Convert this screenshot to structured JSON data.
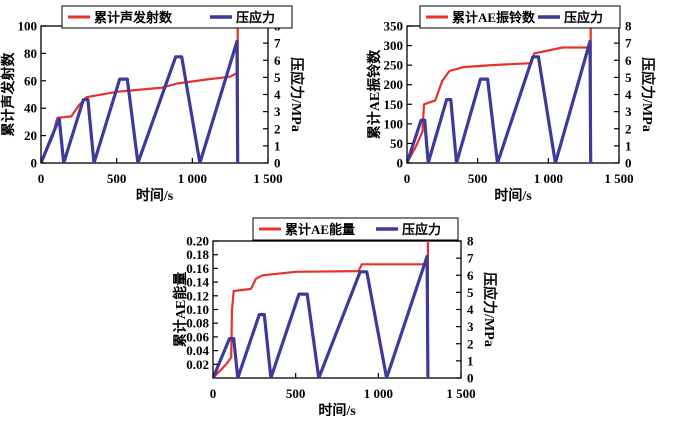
{
  "chart_data": [
    {
      "type": "line",
      "xlabel": "时间/s",
      "ylabel": "累计声发射数",
      "y2label": "压应力/MPa",
      "xlim": [
        0,
        1500
      ],
      "ylim": [
        0,
        100
      ],
      "y2lim": [
        0,
        8
      ],
      "xticks": [
        {
          "v": 0,
          "label": "0"
        },
        {
          "v": 500,
          "label": "500"
        },
        {
          "v": 1000,
          "label": "1 000"
        },
        {
          "v": 1500,
          "label": "1 500"
        }
      ],
      "yticks": [
        {
          "v": 0,
          "label": "0"
        },
        {
          "v": 20,
          "label": "20"
        },
        {
          "v": 40,
          "label": "40"
        },
        {
          "v": 60,
          "label": "60"
        },
        {
          "v": 80,
          "label": "80"
        },
        {
          "v": 100,
          "label": "100"
        }
      ],
      "y2ticks": [
        {
          "v": 0,
          "label": "0"
        },
        {
          "v": 1,
          "label": "1"
        },
        {
          "v": 2,
          "label": "2"
        },
        {
          "v": 3,
          "label": "3"
        },
        {
          "v": 4,
          "label": "4"
        },
        {
          "v": 5,
          "label": "5"
        },
        {
          "v": 6,
          "label": "6"
        },
        {
          "v": 7,
          "label": "7"
        },
        {
          "v": 8,
          "label": "8"
        }
      ],
      "series": [
        {
          "name": "累计声发射数",
          "axis": "left",
          "color": "#e8312a",
          "x": [
            0,
            40,
            80,
            100,
            110,
            200,
            250,
            300,
            500,
            800,
            900,
            1100,
            1250,
            1300,
            1300,
            1300
          ],
          "y": [
            0,
            10,
            20,
            30,
            33,
            34,
            42,
            48,
            52,
            55,
            58,
            61,
            63,
            66,
            0,
            100
          ]
        },
        {
          "name": "压应力",
          "axis": "right",
          "color": "#3d3a99",
          "x": [
            0,
            120,
            150,
            280,
            310,
            350,
            520,
            570,
            640,
            890,
            930,
            1050,
            1295,
            1300
          ],
          "y": [
            0,
            2.6,
            0,
            3.7,
            3.7,
            0,
            4.9,
            4.9,
            0,
            6.2,
            6.2,
            0,
            7.1,
            0
          ]
        }
      ]
    },
    {
      "type": "line",
      "xlabel": "时间/s",
      "ylabel": "累计AE振铃数",
      "y2label": "压应力/MPa",
      "xlim": [
        0,
        1500
      ],
      "ylim": [
        0,
        350
      ],
      "y2lim": [
        0,
        8
      ],
      "xticks": [
        {
          "v": 0,
          "label": "0"
        },
        {
          "v": 500,
          "label": "500"
        },
        {
          "v": 1000,
          "label": "1 000"
        },
        {
          "v": 1500,
          "label": "1 500"
        }
      ],
      "yticks": [
        {
          "v": 0,
          "label": "0"
        },
        {
          "v": 50,
          "label": "50"
        },
        {
          "v": 100,
          "label": "100"
        },
        {
          "v": 150,
          "label": "150"
        },
        {
          "v": 200,
          "label": "200"
        },
        {
          "v": 250,
          "label": "250"
        },
        {
          "v": 300,
          "label": "300"
        },
        {
          "v": 350,
          "label": "350"
        }
      ],
      "y2ticks": [
        {
          "v": 0,
          "label": "0"
        },
        {
          "v": 1,
          "label": "1"
        },
        {
          "v": 2,
          "label": "2"
        },
        {
          "v": 3,
          "label": "3"
        },
        {
          "v": 4,
          "label": "4"
        },
        {
          "v": 5,
          "label": "5"
        },
        {
          "v": 6,
          "label": "6"
        },
        {
          "v": 7,
          "label": "7"
        },
        {
          "v": 8,
          "label": "8"
        }
      ],
      "series": [
        {
          "name": "累计AE振铃数",
          "axis": "left",
          "color": "#e8312a",
          "x": [
            0,
            60,
            110,
            120,
            200,
            250,
            300,
            400,
            600,
            880,
            900,
            1100,
            1280,
            1300,
            1300,
            1300
          ],
          "y": [
            0,
            40,
            80,
            150,
            160,
            210,
            235,
            245,
            250,
            255,
            280,
            295,
            295,
            300,
            0,
            350
          ]
        },
        {
          "name": "压应力",
          "axis": "right",
          "color": "#3d3a99",
          "x": [
            0,
            100,
            125,
            150,
            280,
            310,
            350,
            520,
            570,
            640,
            890,
            930,
            1050,
            1295,
            1300
          ],
          "y": [
            0,
            2.5,
            2.5,
            0,
            3.7,
            3.7,
            0,
            4.9,
            4.9,
            0,
            6.2,
            6.2,
            0,
            7.1,
            0
          ]
        }
      ]
    },
    {
      "type": "line",
      "xlabel": "时间/s",
      "ylabel": "累计AE能量",
      "y2label": "压应力/MPa",
      "xlim": [
        0,
        1500
      ],
      "ylim": [
        0,
        0.2
      ],
      "y2lim": [
        0,
        8
      ],
      "xticks": [
        {
          "v": 0,
          "label": "0"
        },
        {
          "v": 500,
          "label": "500"
        },
        {
          "v": 1000,
          "label": "1 000"
        },
        {
          "v": 1500,
          "label": "1 500"
        }
      ],
      "yticks": [
        {
          "v": 0.02,
          "label": "0.02"
        },
        {
          "v": 0.04,
          "label": "0.04"
        },
        {
          "v": 0.06,
          "label": "0.06"
        },
        {
          "v": 0.08,
          "label": "0.08"
        },
        {
          "v": 0.1,
          "label": "0.10"
        },
        {
          "v": 0.12,
          "label": "0.12"
        },
        {
          "v": 0.14,
          "label": "0.14"
        },
        {
          "v": 0.16,
          "label": "0.16"
        },
        {
          "v": 0.18,
          "label": "0.18"
        },
        {
          "v": 0.2,
          "label": "0.20"
        }
      ],
      "y2ticks": [
        {
          "v": 0,
          "label": "0"
        },
        {
          "v": 1,
          "label": "1"
        },
        {
          "v": 2,
          "label": "2"
        },
        {
          "v": 3,
          "label": "3"
        },
        {
          "v": 4,
          "label": "4"
        },
        {
          "v": 5,
          "label": "5"
        },
        {
          "v": 6,
          "label": "6"
        },
        {
          "v": 7,
          "label": "7"
        },
        {
          "v": 8,
          "label": "8"
        }
      ],
      "series": [
        {
          "name": "累计AE能量",
          "axis": "left",
          "color": "#e8312a",
          "x": [
            0,
            80,
            110,
            115,
            125,
            230,
            260,
            300,
            500,
            880,
            900,
            1100,
            1290,
            1300,
            1300,
            1300
          ],
          "y": [
            0,
            0.02,
            0.03,
            0.1,
            0.127,
            0.13,
            0.145,
            0.15,
            0.155,
            0.156,
            0.166,
            0.166,
            0.166,
            0.172,
            0,
            0.2
          ]
        },
        {
          "name": "压应力",
          "axis": "right",
          "color": "#3d3a99",
          "x": [
            0,
            100,
            125,
            150,
            280,
            310,
            350,
            520,
            570,
            640,
            890,
            930,
            1050,
            1295,
            1300
          ],
          "y": [
            0,
            2.3,
            2.3,
            0,
            3.7,
            3.7,
            0,
            4.9,
            4.9,
            0,
            6.2,
            6.2,
            0,
            7.1,
            0
          ]
        }
      ]
    }
  ]
}
